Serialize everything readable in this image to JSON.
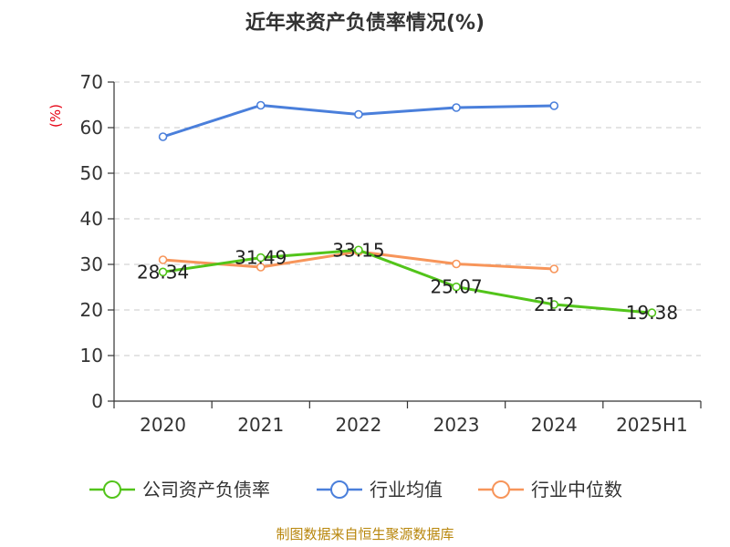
{
  "chart_data": {
    "type": "line",
    "title": "近年来资产负债率情况(%)",
    "ylabel": "(%)",
    "xlabel": "",
    "categories": [
      "2020",
      "2021",
      "2022",
      "2023",
      "2024",
      "2025H1"
    ],
    "ylim": [
      0,
      70
    ],
    "yticks": [
      0,
      10,
      20,
      30,
      40,
      50,
      60,
      70
    ],
    "grid": true,
    "legend_position": "bottom",
    "series": [
      {
        "name": "公司资产负债率",
        "color": "#52c41a",
        "values": [
          28.34,
          31.49,
          33.15,
          25.07,
          21.2,
          19.38
        ],
        "labels": [
          "28.34",
          "31.49",
          "33.15",
          "25.07",
          "21.2",
          "19.38"
        ]
      },
      {
        "name": "行业均值",
        "color": "#4a7fdb",
        "values": [
          58.0,
          64.9,
          62.9,
          64.4,
          64.8,
          null
        ],
        "labels": null
      },
      {
        "name": "行业中位数",
        "color": "#f7955a",
        "values": [
          31.0,
          29.4,
          32.8,
          30.1,
          29.0,
          null
        ],
        "labels": null
      }
    ]
  },
  "source": "制图数据来自恒生聚源数据库"
}
